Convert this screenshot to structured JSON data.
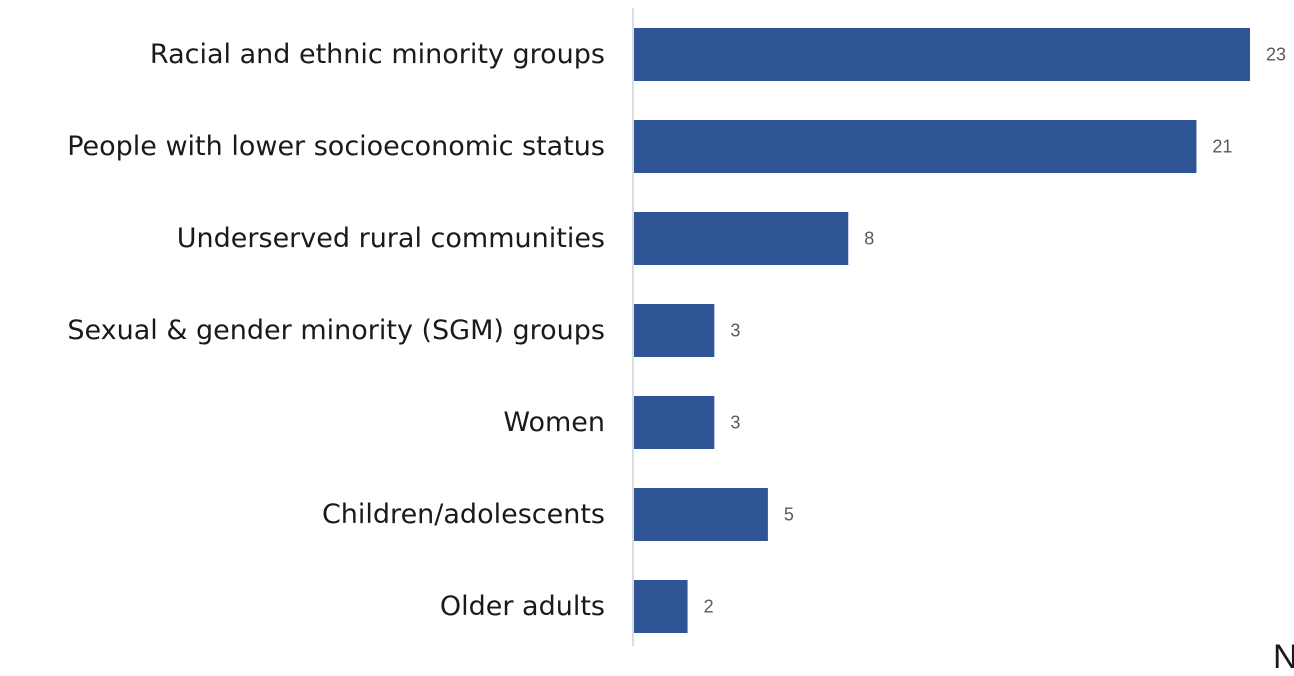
{
  "chart_data": {
    "type": "bar",
    "orientation": "horizontal",
    "categories": [
      "Racial and ethnic minority groups",
      "People with lower socioeconomic status",
      "Underserved rural communities",
      "Sexual & gender minority (SGM) groups",
      "Women",
      "Children/adolescents",
      "Older adults"
    ],
    "values": [
      23,
      21,
      8,
      3,
      3,
      5,
      2
    ],
    "xlim": [
      0,
      23
    ],
    "bar_color": "#2f5597",
    "axis_color": "#d0d0d0",
    "grid": false,
    "data_labels": true
  },
  "corner_text": "N"
}
